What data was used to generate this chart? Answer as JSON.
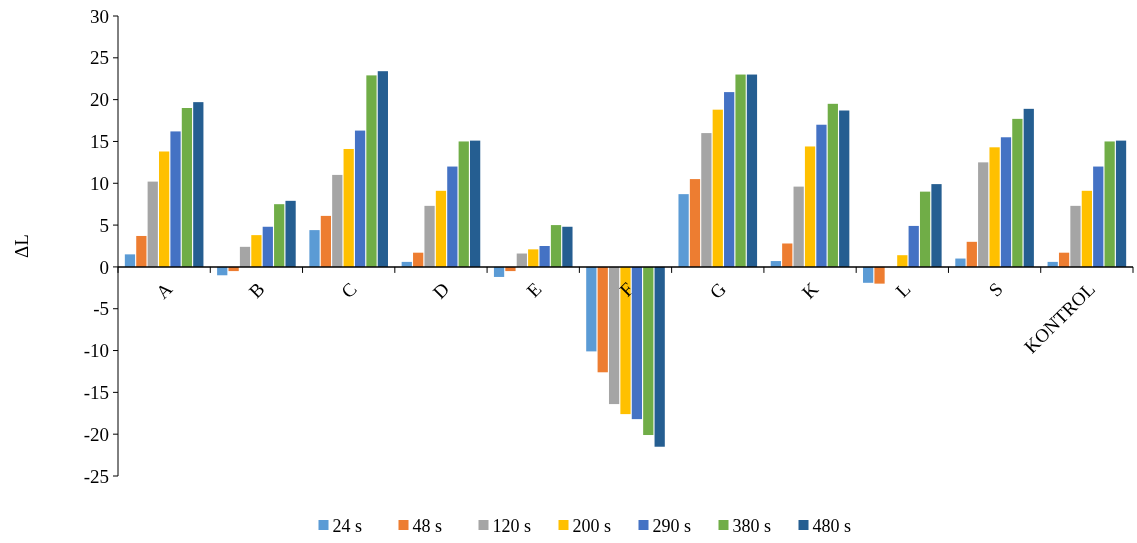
{
  "chart_data": {
    "type": "bar",
    "ylabel": "ΔL",
    "categories": [
      "A",
      "B",
      "C",
      "D",
      "E",
      "F",
      "G",
      "K",
      "L",
      "S",
      "KONTROL"
    ],
    "series": [
      {
        "name": "24 s",
        "color": "#5b9bd5",
        "values": [
          1.5,
          -1.0,
          4.4,
          0.6,
          -1.2,
          -10.1,
          8.7,
          0.7,
          -1.9,
          1.0,
          0.6
        ]
      },
      {
        "name": "48 s",
        "color": "#ed7d31",
        "values": [
          3.7,
          -0.5,
          6.1,
          1.7,
          -0.5,
          -12.6,
          10.5,
          2.8,
          -2.0,
          3.0,
          1.7
        ]
      },
      {
        "name": "120 s",
        "color": "#a5a5a5",
        "values": [
          10.2,
          2.4,
          11.0,
          7.3,
          1.6,
          -16.4,
          16.0,
          9.6,
          0,
          12.5,
          7.3
        ]
      },
      {
        "name": "200 s",
        "color": "#ffc000",
        "values": [
          13.8,
          3.8,
          14.1,
          9.1,
          2.1,
          -17.6,
          18.8,
          14.4,
          1.4,
          14.3,
          9.1
        ]
      },
      {
        "name": "290 s",
        "color": "#4472c4",
        "values": [
          16.2,
          4.8,
          16.3,
          12.0,
          2.5,
          -18.2,
          20.9,
          17.0,
          4.9,
          15.5,
          12.0
        ]
      },
      {
        "name": "380 s",
        "color": "#70ad47",
        "values": [
          19.0,
          7.5,
          22.9,
          15.0,
          5.0,
          -20.1,
          23.0,
          19.5,
          9.0,
          17.7,
          15.0
        ]
      },
      {
        "name": "480 s",
        "color": "#255e91",
        "values": [
          19.7,
          7.9,
          23.4,
          15.1,
          4.8,
          -21.5,
          23.0,
          18.7,
          9.9,
          18.9,
          15.1
        ]
      }
    ],
    "ylim": [
      -25,
      30
    ],
    "yticks": [
      -25,
      -20,
      -15,
      -10,
      -5,
      0,
      5,
      10,
      15,
      20,
      25,
      30
    ],
    "grid": false,
    "legend": "bottom"
  }
}
